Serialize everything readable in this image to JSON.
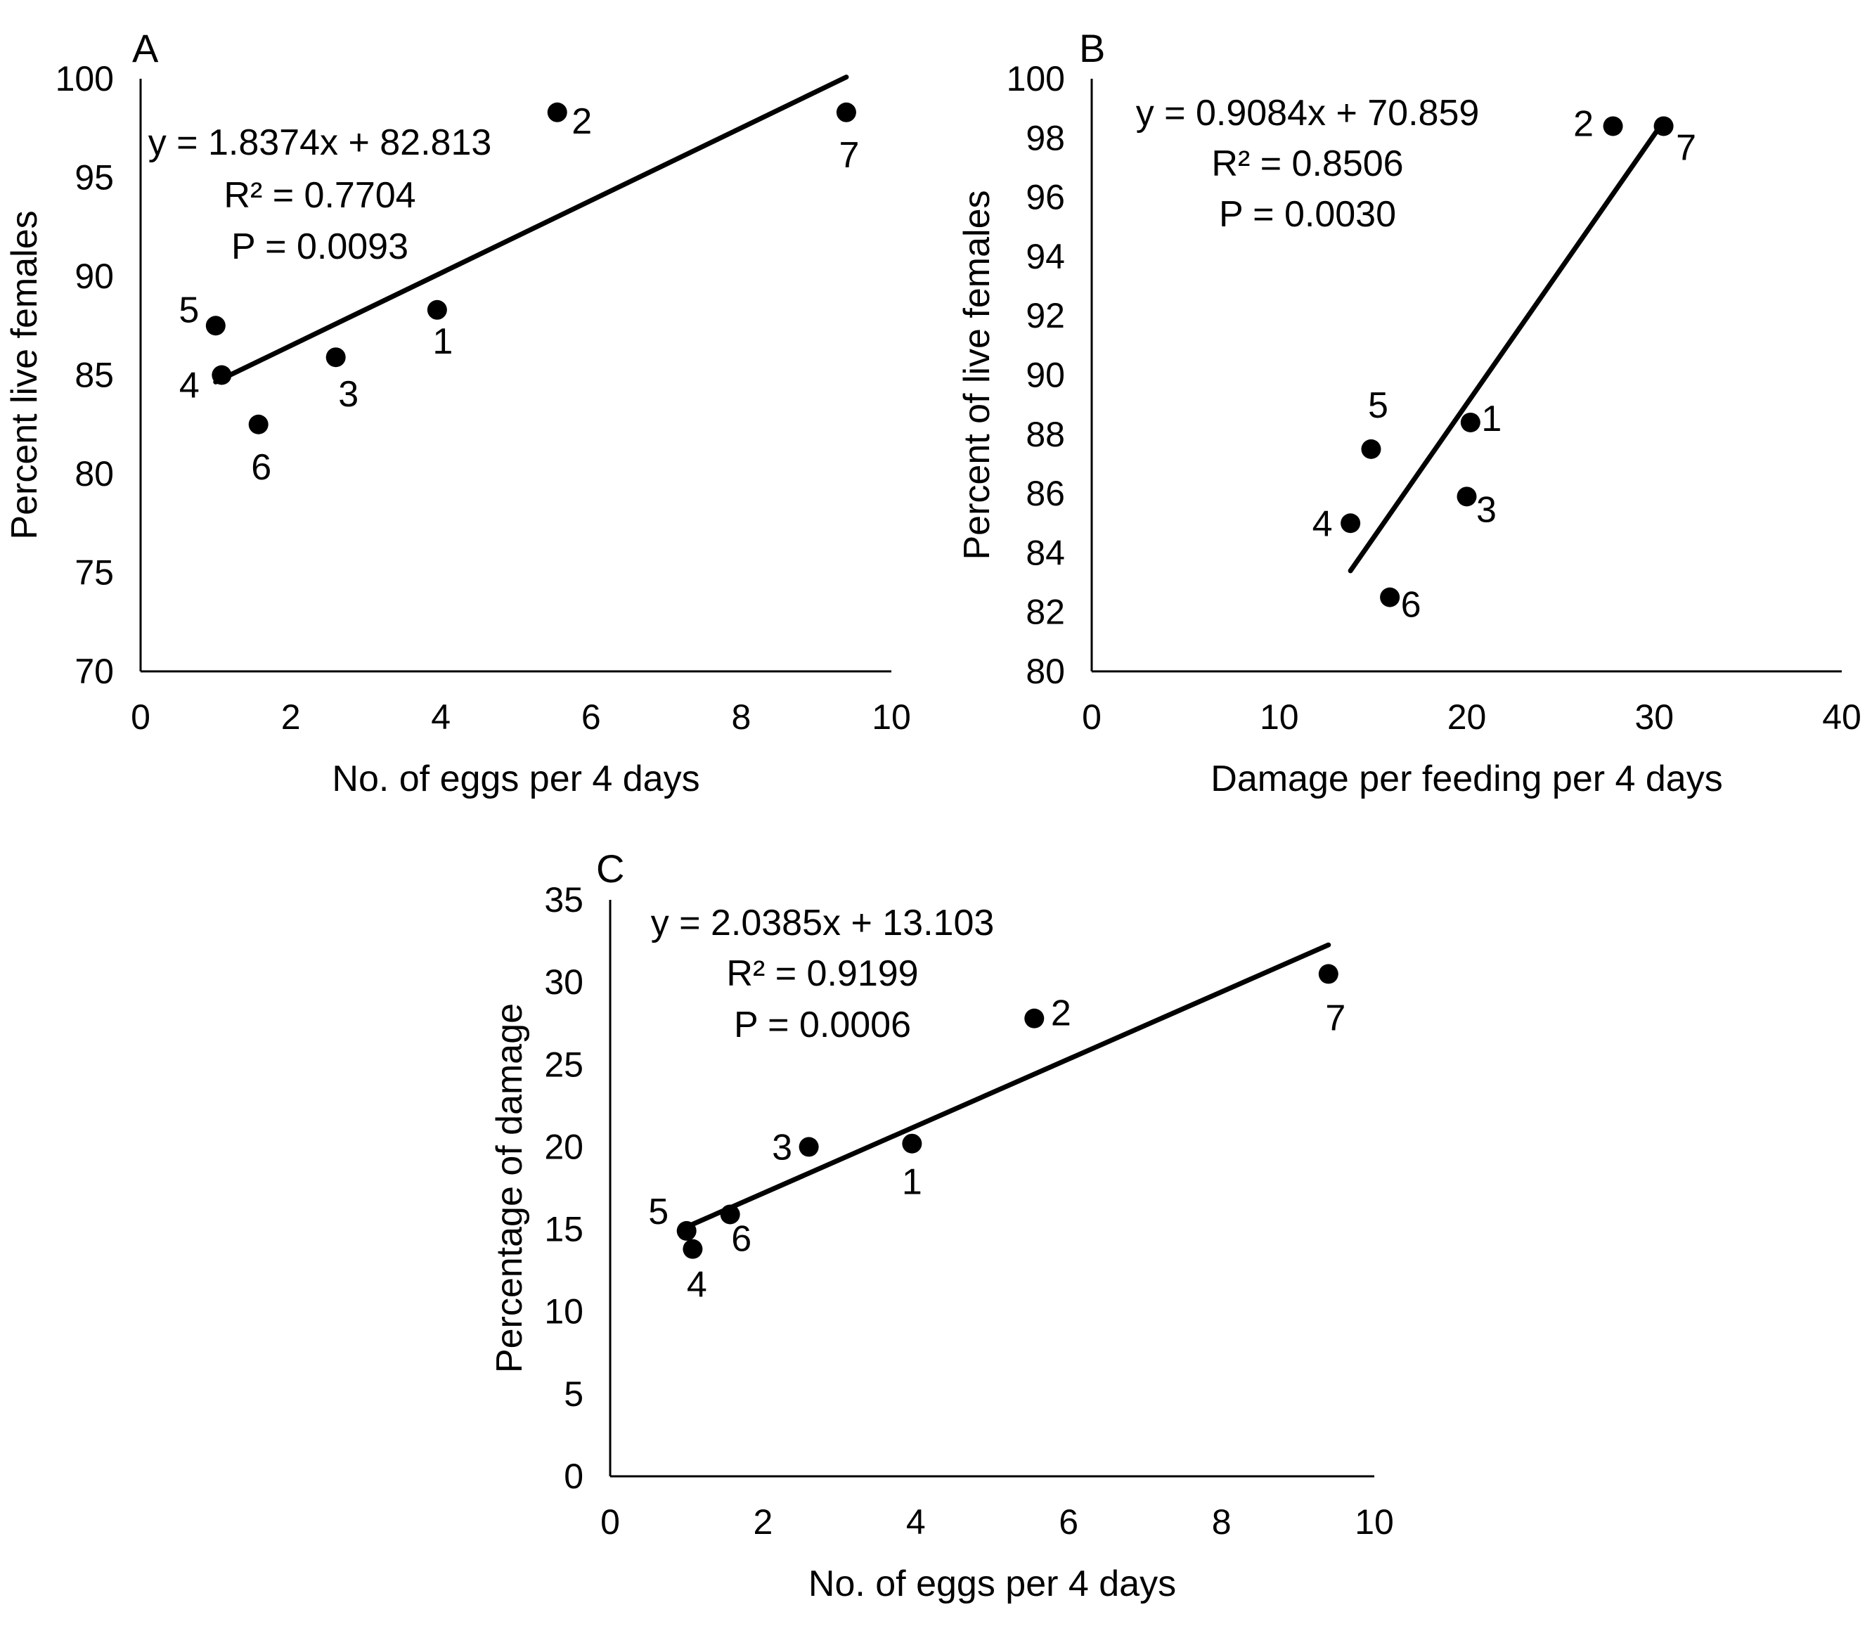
{
  "chart_data": [
    {
      "panel": "A",
      "type": "scatter",
      "title": "",
      "xlabel": "No. of eggs per 4 days",
      "ylabel": "Percent live females",
      "xlim": [
        0,
        10
      ],
      "ylim": [
        70,
        100
      ],
      "xticks": [
        0,
        2,
        4,
        6,
        8,
        10
      ],
      "yticks": [
        70,
        75,
        80,
        85,
        90,
        95,
        100
      ],
      "grid": false,
      "points": [
        {
          "label": "1",
          "x": 3.95,
          "y": 88.3
        },
        {
          "label": "2",
          "x": 5.55,
          "y": 98.3
        },
        {
          "label": "3",
          "x": 2.6,
          "y": 85.9
        },
        {
          "label": "4",
          "x": 1.08,
          "y": 85.0
        },
        {
          "label": "5",
          "x": 1.0,
          "y": 87.5
        },
        {
          "label": "6",
          "x": 1.57,
          "y": 82.5
        },
        {
          "label": "7",
          "x": 9.4,
          "y": 98.3
        }
      ],
      "trendline": {
        "slope": 1.8374,
        "intercept": 82.813,
        "x_range": [
          1.0,
          9.4
        ]
      },
      "annotations": [
        "y = 1.8374x + 82.813",
        "R² = 0.7704",
        "P = 0.0093"
      ]
    },
    {
      "panel": "B",
      "type": "scatter",
      "title": "",
      "xlabel": "Damage per feeding per 4 days",
      "ylabel": "Percent of live females",
      "xlim": [
        0,
        40
      ],
      "ylim": [
        80,
        100
      ],
      "xticks": [
        0,
        10,
        20,
        30,
        40
      ],
      "yticks": [
        80,
        82,
        84,
        86,
        88,
        90,
        92,
        94,
        96,
        98,
        100
      ],
      "grid": false,
      "points": [
        {
          "label": "1",
          "x": 20.2,
          "y": 88.4
        },
        {
          "label": "2",
          "x": 27.8,
          "y": 98.4
        },
        {
          "label": "3",
          "x": 20.0,
          "y": 85.9
        },
        {
          "label": "4",
          "x": 13.8,
          "y": 85.0
        },
        {
          "label": "5",
          "x": 14.9,
          "y": 87.5
        },
        {
          "label": "6",
          "x": 15.9,
          "y": 82.5
        },
        {
          "label": "7",
          "x": 30.5,
          "y": 98.4
        }
      ],
      "trendline": {
        "slope": 0.9084,
        "intercept": 70.859,
        "x_range": [
          13.8,
          30.5
        ]
      },
      "annotations": [
        "y = 0.9084x + 70.859",
        "R² = 0.8506",
        "P = 0.0030"
      ]
    },
    {
      "panel": "C",
      "type": "scatter",
      "title": "",
      "xlabel": "No. of eggs per 4 days",
      "ylabel": "Percentage of damage",
      "xlim": [
        0,
        10
      ],
      "ylim": [
        0,
        35
      ],
      "xticks": [
        0,
        2,
        4,
        6,
        8,
        10
      ],
      "yticks": [
        0,
        5,
        10,
        15,
        20,
        25,
        30,
        35
      ],
      "grid": false,
      "points": [
        {
          "label": "1",
          "x": 3.95,
          "y": 20.2
        },
        {
          "label": "2",
          "x": 5.55,
          "y": 27.8
        },
        {
          "label": "3",
          "x": 2.6,
          "y": 20.0
        },
        {
          "label": "4",
          "x": 1.08,
          "y": 13.8
        },
        {
          "label": "5",
          "x": 1.0,
          "y": 14.9
        },
        {
          "label": "6",
          "x": 1.57,
          "y": 15.9
        },
        {
          "label": "7",
          "x": 9.4,
          "y": 30.5
        }
      ],
      "trendline": {
        "slope": 2.0385,
        "intercept": 13.103,
        "x_range": [
          1.0,
          9.4
        ]
      },
      "annotations": [
        "y = 2.0385x + 13.103",
        "R² = 0.9199",
        "P = 0.0006"
      ]
    }
  ]
}
